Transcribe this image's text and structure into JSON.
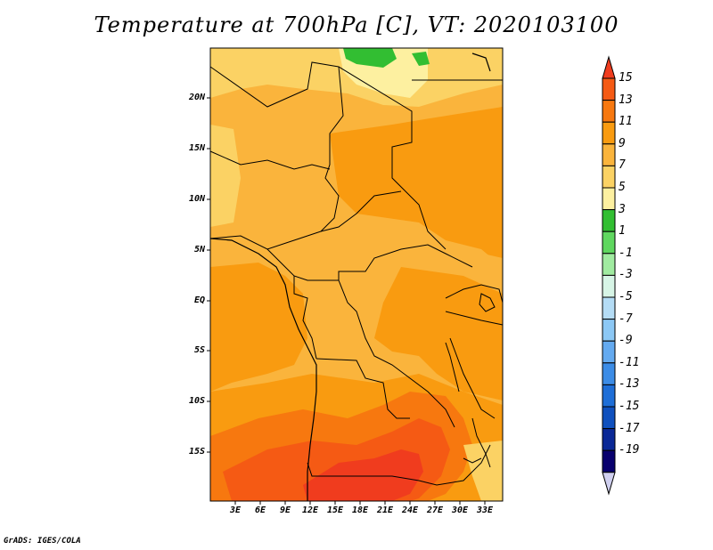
{
  "title": "Temperature at 700hPa [C], VT: 2020103100",
  "credit": "GrADS: IGES/COLA",
  "lat_labels": [
    "20N",
    "15N",
    "10N",
    "5N",
    "EQ",
    "5S",
    "10S",
    "15S"
  ],
  "lon_labels": [
    "3E",
    "6E",
    "9E",
    "12E",
    "15E",
    "18E",
    "21E",
    "24E",
    "27E",
    "30E",
    "33E"
  ],
  "colorbar": {
    "labels": [
      "15",
      "13",
      "11",
      "9",
      "7",
      "5",
      "3",
      "1",
      "-1",
      "-3",
      "-5",
      "-7",
      "-9",
      "-11",
      "-13",
      "-15",
      "-17",
      "-19"
    ],
    "colors": [
      "#f03c1e",
      "#f55a14",
      "#f7780f",
      "#f99b10",
      "#fab43c",
      "#fbd264",
      "#fdf0a0",
      "#32be32",
      "#5fd75f",
      "#a0eba0",
      "#d7f5e6",
      "#b4dcf5",
      "#8cc8f5",
      "#64aaf0",
      "#3c8ce6",
      "#1e6ed7",
      "#0f50be",
      "#0a2896",
      "#08006e",
      "#d0d0f0"
    ]
  },
  "map": {
    "lat_range": [
      -20,
      24.5
    ],
    "lon_range": [
      0,
      34.5
    ],
    "field_colors": {
      "yellow_pale": "#fdf0a0",
      "yellow": "#fbd264",
      "light_orange": "#fab43c",
      "orange": "#f99b10",
      "dark_orange": "#f7780f",
      "red_orange": "#f55a14",
      "red": "#f03c1e",
      "green": "#32be32"
    }
  }
}
